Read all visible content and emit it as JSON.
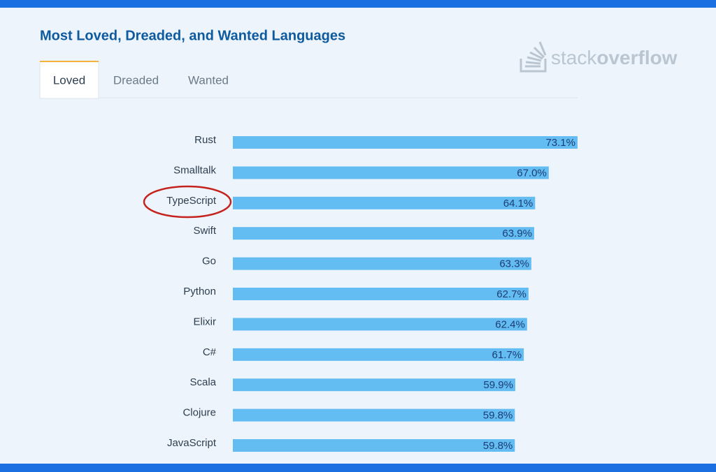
{
  "chart_data": {
    "type": "bar",
    "orientation": "horizontal",
    "title": "Most Loved, Dreaded, and Wanted Languages",
    "tabs": [
      "Loved",
      "Dreaded",
      "Wanted"
    ],
    "categories": [
      "Rust",
      "Smalltalk",
      "TypeScript",
      "Swift",
      "Go",
      "Python",
      "Elixir",
      "C#",
      "Scala",
      "Clojure",
      "JavaScript"
    ],
    "values": [
      73.1,
      67.0,
      64.1,
      63.9,
      63.3,
      62.7,
      62.4,
      61.7,
      59.9,
      59.8,
      59.8
    ],
    "value_labels": [
      "73.1%",
      "67.0%",
      "64.1%",
      "63.9%",
      "63.3%",
      "62.7%",
      "62.4%",
      "61.7%",
      "59.9%",
      "59.8%",
      "59.8%"
    ],
    "color": "#63bdf3"
  },
  "logo": {
    "stack": "stack",
    "overflow": "overflow"
  }
}
